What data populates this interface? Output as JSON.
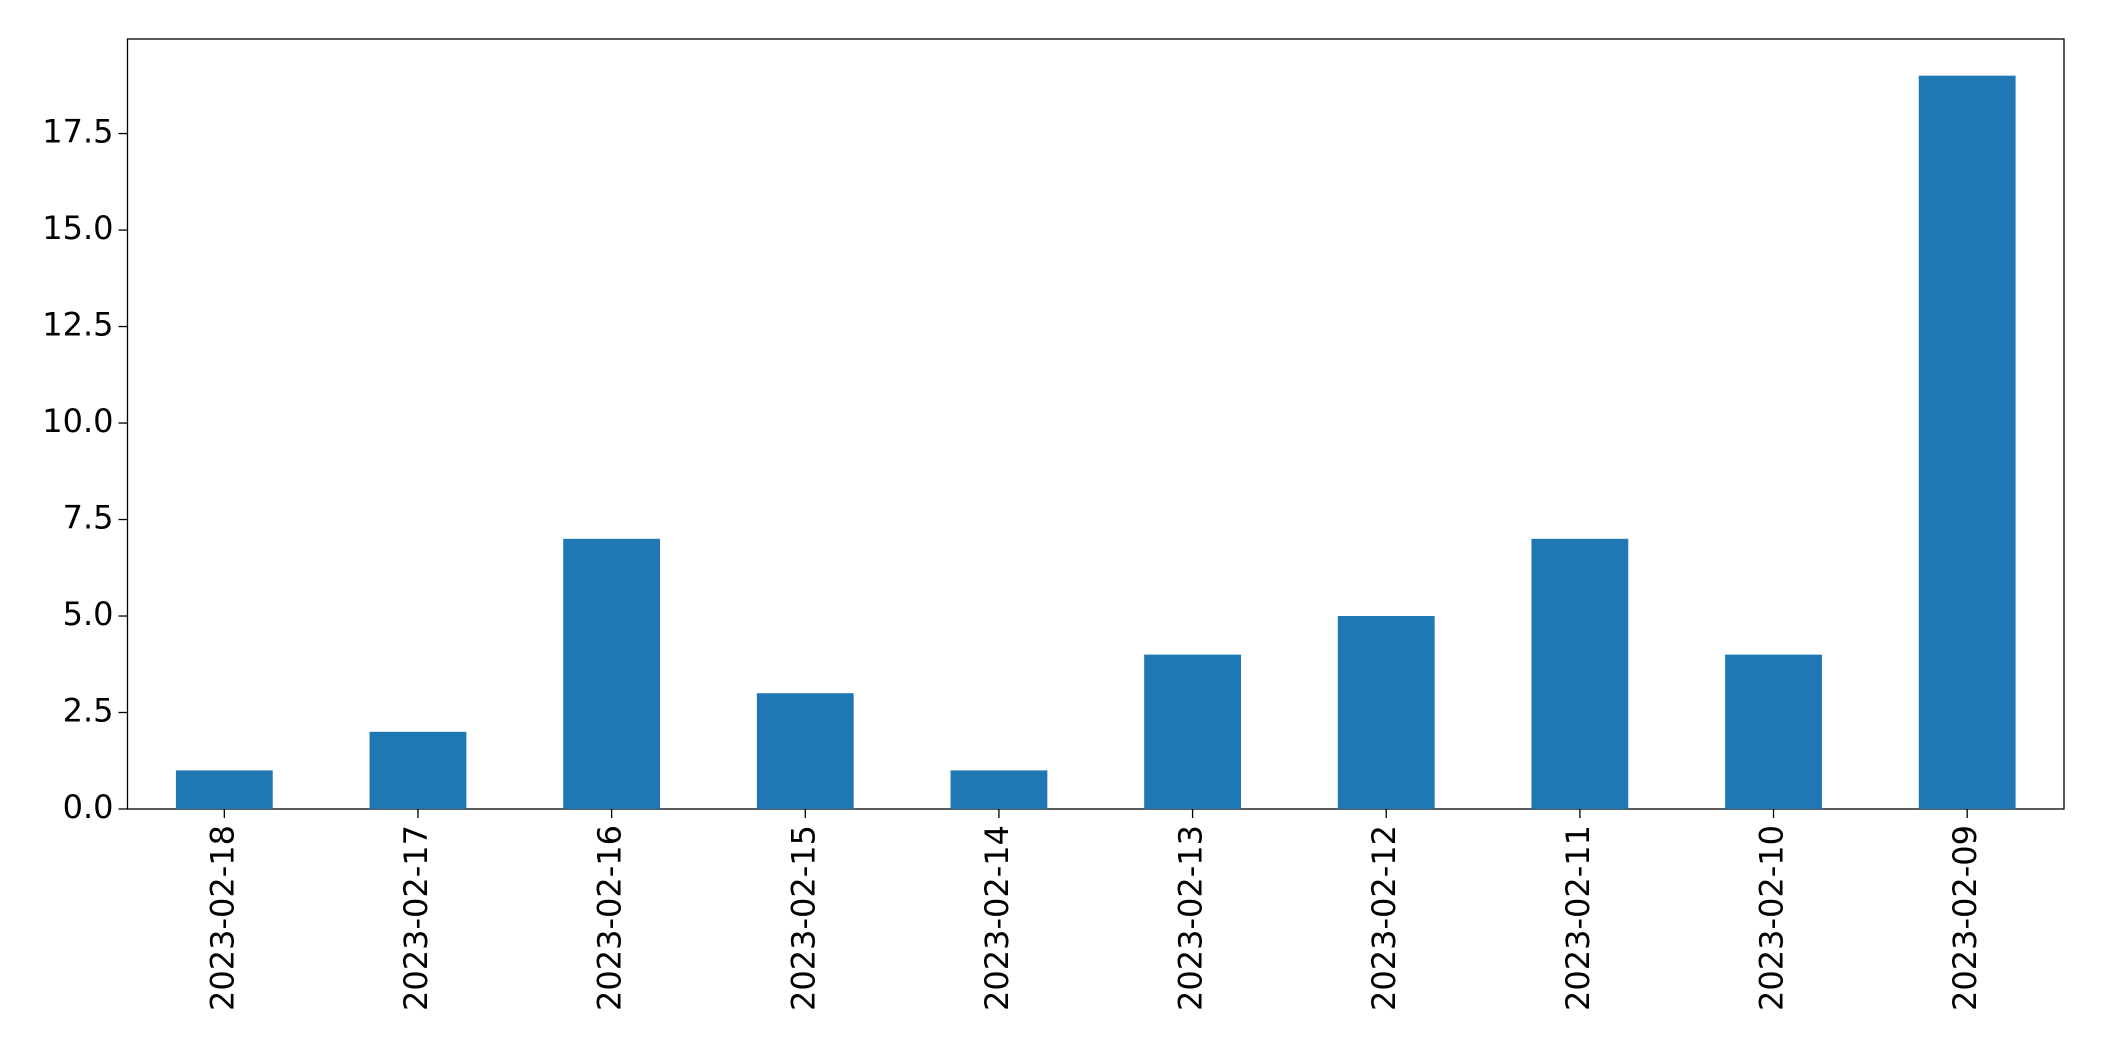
{
  "chart_data": {
    "type": "bar",
    "categories": [
      "2023-02-18",
      "2023-02-17",
      "2023-02-16",
      "2023-02-15",
      "2023-02-14",
      "2023-02-13",
      "2023-02-12",
      "2023-02-11",
      "2023-02-10",
      "2023-02-09"
    ],
    "values": [
      1,
      2,
      7,
      3,
      1,
      4,
      5,
      7,
      4,
      19
    ],
    "color": "#1f77b4",
    "ylim": [
      0,
      19.95
    ],
    "yticks": [
      {
        "value": 0,
        "label": "0.0"
      },
      2.5,
      {
        "value": 5,
        "label": "5.0"
      },
      7.5,
      {
        "value": 10,
        "label": "10.0"
      },
      12.5,
      {
        "value": 15,
        "label": "15.0"
      },
      17.5
    ],
    "grid": false
  }
}
